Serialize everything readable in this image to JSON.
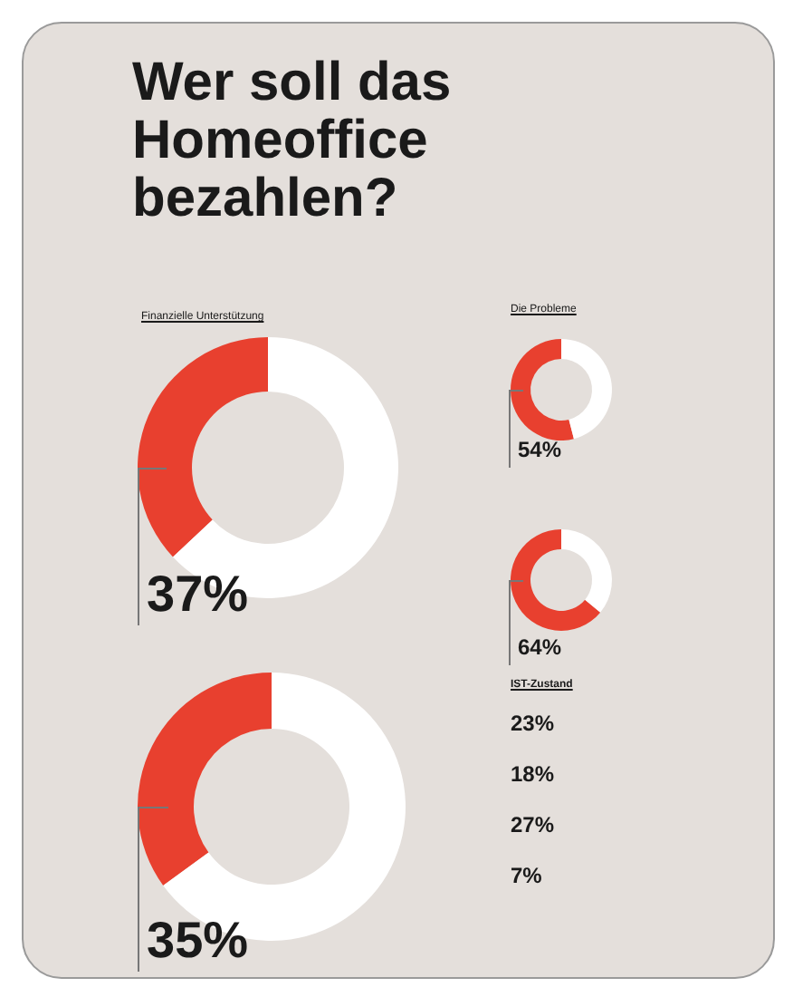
{
  "chart_data": [
    {
      "type": "donut",
      "title": "Wer soll das Homeoffice bezahlen?",
      "subtitle": "Finanzielle Unterstützung",
      "categories": [
        null,
        null
      ],
      "values": [
        37,
        63
      ],
      "colors": [
        "#e8402f",
        "#ffffff"
      ],
      "value_labels": [
        "37%",
        null
      ]
    },
    {
      "type": "donut",
      "categories": [
        null,
        null
      ],
      "values": [
        35,
        65
      ],
      "colors": [
        "#e8402f",
        "#ffffff"
      ],
      "value_labels": [
        "35%",
        null
      ]
    },
    {
      "type": "donut",
      "subtitle": "Die Probleme",
      "categories": [
        null,
        null
      ],
      "values": [
        54,
        46
      ],
      "colors": [
        "#e8402f",
        "#ffffff"
      ],
      "value_labels": [
        "54%",
        null
      ]
    },
    {
      "type": "donut",
      "categories": [
        null,
        null
      ],
      "values": [
        64,
        36
      ],
      "colors": [
        "#e8402f",
        "#ffffff"
      ],
      "value_labels": [
        "64%",
        null
      ]
    },
    {
      "type": "other",
      "title": "IST-Zustand",
      "annotations": [
        "23%",
        "18%",
        "27%",
        "7%"
      ]
    }
  ]
}
